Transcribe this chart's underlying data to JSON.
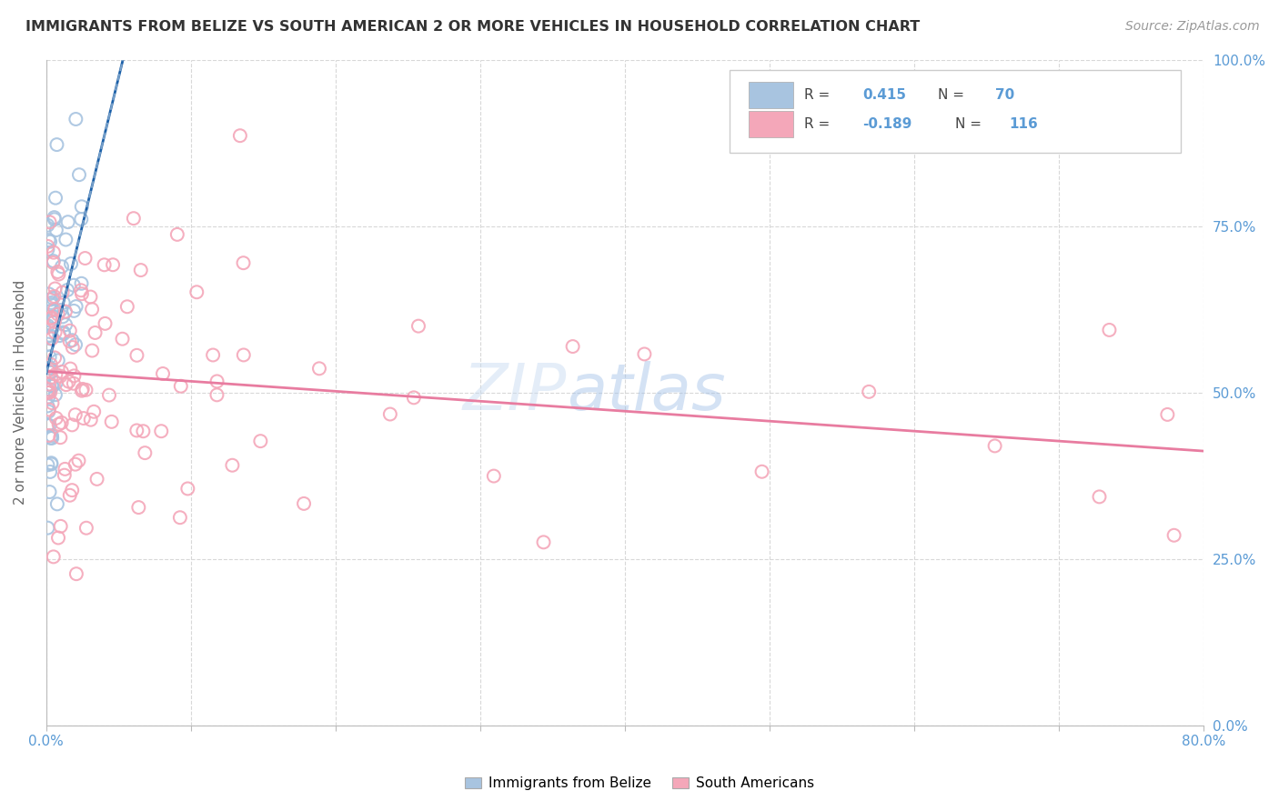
{
  "title": "IMMIGRANTS FROM BELIZE VS SOUTH AMERICAN 2 OR MORE VEHICLES IN HOUSEHOLD CORRELATION CHART",
  "source": "Source: ZipAtlas.com",
  "ylabel_left": "2 or more Vehicles in Household",
  "xlim": [
    0.0,
    0.8
  ],
  "ylim": [
    0.0,
    1.0
  ],
  "legend_R1": "0.415",
  "legend_N1": "70",
  "legend_R2": "-0.189",
  "legend_N2": "116",
  "belize_color": "#a8c4e0",
  "sa_color": "#f4a7b9",
  "trendline_belize_color": "#1a5fa8",
  "trendline_sa_color": "#e87ca0",
  "background_color": "#ffffff",
  "grid_color": "#d8d8d8",
  "watermark_zip": "ZIP",
  "watermark_atlas": "atlas",
  "title_color": "#333333",
  "source_color": "#999999",
  "right_axis_color": "#5b9bd5",
  "left_label_color": "#666666"
}
